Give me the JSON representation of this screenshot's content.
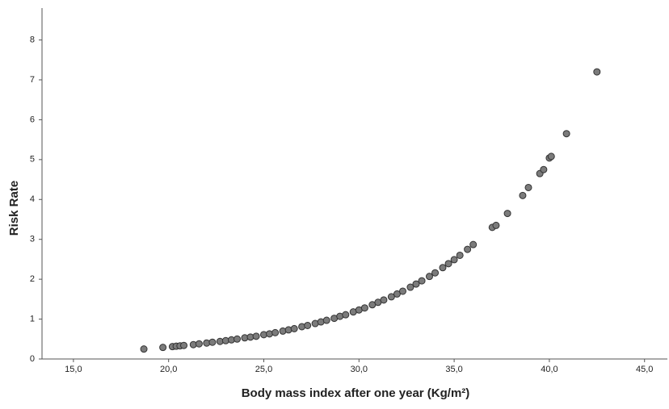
{
  "chart_data": {
    "type": "scatter",
    "x_label": "Body mass index after one year (Kg/m²)",
    "y_label": "Risk Rate",
    "x": [
      18.7,
      19.7,
      20.2,
      20.4,
      20.6,
      20.8,
      21.3,
      21.6,
      22.0,
      22.3,
      22.7,
      23.0,
      23.3,
      23.6,
      24.0,
      24.3,
      24.6,
      25.0,
      25.3,
      25.6,
      26.0,
      26.3,
      26.6,
      27.0,
      27.3,
      27.7,
      28.0,
      28.3,
      28.7,
      29.0,
      29.3,
      29.7,
      30.0,
      30.3,
      30.7,
      31.0,
      31.3,
      31.7,
      32.0,
      32.3,
      32.7,
      33.0,
      33.3,
      33.7,
      34.0,
      34.4,
      34.7,
      35.0,
      35.3,
      35.7,
      36.0,
      37.0,
      37.2,
      37.8,
      38.6,
      38.9,
      39.5,
      39.7,
      40.0,
      40.1,
      40.9,
      42.5
    ],
    "values": [
      0.25,
      0.29,
      0.31,
      0.32,
      0.33,
      0.34,
      0.36,
      0.38,
      0.4,
      0.42,
      0.44,
      0.46,
      0.48,
      0.5,
      0.53,
      0.55,
      0.57,
      0.61,
      0.63,
      0.66,
      0.7,
      0.73,
      0.76,
      0.81,
      0.84,
      0.89,
      0.93,
      0.97,
      1.02,
      1.07,
      1.11,
      1.18,
      1.23,
      1.28,
      1.36,
      1.42,
      1.48,
      1.56,
      1.63,
      1.7,
      1.8,
      1.88,
      1.96,
      2.07,
      2.16,
      2.29,
      2.39,
      2.49,
      2.6,
      2.75,
      2.87,
      3.3,
      3.35,
      3.65,
      4.1,
      4.3,
      4.65,
      4.75,
      5.04,
      5.08,
      5.65,
      7.2
    ],
    "color": "#7b7b7b",
    "xlim": [
      13.35,
      46.2
    ],
    "ylim": [
      0,
      8.8
    ],
    "xticks": [
      {
        "value": 15,
        "label": "15,0"
      },
      {
        "value": 20,
        "label": "20,0"
      },
      {
        "value": 25,
        "label": "25,0"
      },
      {
        "value": 30,
        "label": "30,0"
      },
      {
        "value": 35,
        "label": "35,0"
      },
      {
        "value": 40,
        "label": "40,0"
      },
      {
        "value": 45,
        "label": "45,0"
      }
    ],
    "yticks": [
      0,
      1,
      2,
      3,
      4,
      5,
      6,
      7,
      8
    ]
  }
}
